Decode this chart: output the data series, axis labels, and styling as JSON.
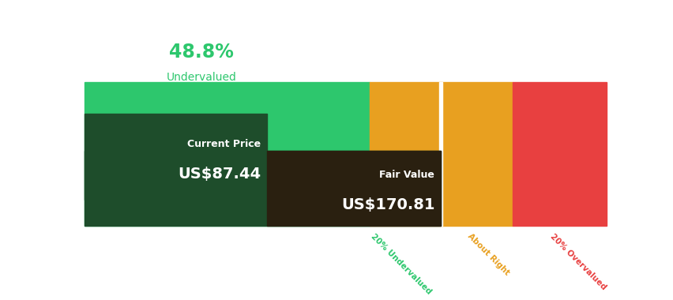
{
  "current_price": 87.44,
  "fair_value": 170.81,
  "color_light_green": "#2dc76d",
  "color_amber": "#e8a020",
  "color_red": "#e84040",
  "color_dark_green_box": "#1e4d2b",
  "color_fair_box": "#2a2010",
  "color_green_label": "#2dc76d",
  "color_amber_label": "#e8a020",
  "color_red_label": "#e84040",
  "background_color": "#ffffff",
  "top_annotation_pct": "48.8%",
  "top_annotation_label": "Undervalued",
  "current_price_label": "Current Price",
  "current_price_value": "US$87.44",
  "fair_value_label": "Fair Value",
  "fair_value_value": "US$170.81",
  "x_label_20under": "20% Undervalued",
  "x_label_about": "About Right",
  "x_label_20over": "20% Overvalued",
  "total_max": 250.0
}
